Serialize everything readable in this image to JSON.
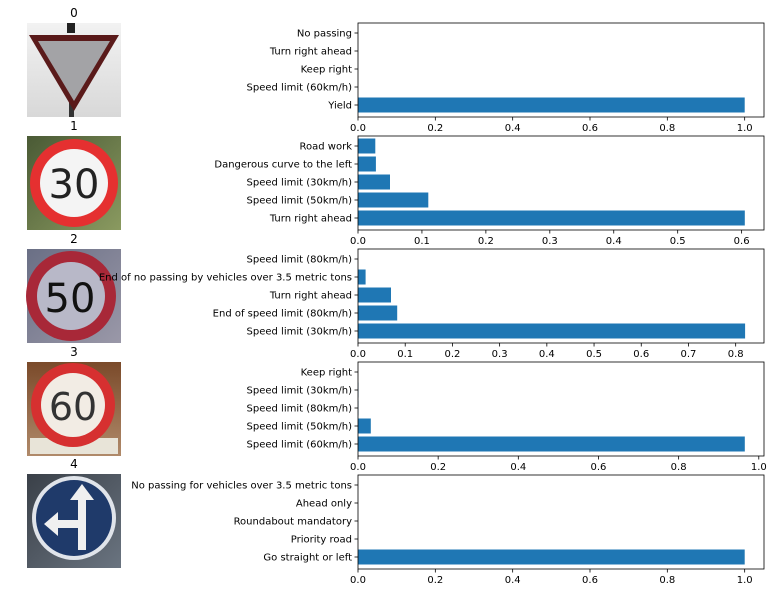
{
  "chart_data": [
    {
      "type": "bar",
      "orientation": "horizontal",
      "image_title": "0",
      "sign_image": "yield-sign",
      "categories": [
        "Yield",
        "Speed limit (60km/h)",
        "Keep right",
        "Turn right ahead",
        "No passing"
      ],
      "values": [
        1.0,
        0.0,
        0.0,
        0.0,
        0.0
      ],
      "xlim": [
        0,
        1.05
      ],
      "xticks": [
        "0.0",
        "0.2",
        "0.4",
        "0.6",
        "0.8",
        "1.0"
      ],
      "xtick_values": [
        0,
        0.2,
        0.4,
        0.6,
        0.8,
        1.0
      ],
      "bar_color": "#1f77b4"
    },
    {
      "type": "bar",
      "orientation": "horizontal",
      "image_title": "1",
      "sign_image": "speed-limit-30-sign",
      "categories": [
        "Turn right ahead",
        "Speed limit (50km/h)",
        "Speed limit (30km/h)",
        "Dangerous curve to the left",
        "Road work"
      ],
      "values": [
        0.605,
        0.11,
        0.05,
        0.028,
        0.027
      ],
      "xlim": [
        0,
        0.635
      ],
      "xticks": [
        "0.0",
        "0.1",
        "0.2",
        "0.3",
        "0.4",
        "0.5",
        "0.6"
      ],
      "xtick_values": [
        0,
        0.1,
        0.2,
        0.3,
        0.4,
        0.5,
        0.6
      ],
      "bar_color": "#1f77b4"
    },
    {
      "type": "bar",
      "orientation": "horizontal",
      "image_title": "2",
      "sign_image": "speed-limit-50-sign",
      "categories": [
        "Speed limit (30km/h)",
        "End of speed limit (80km/h)",
        "Turn right ahead",
        "End of no passing by vehicles over 3.5 metric tons",
        "Speed limit (80km/h)"
      ],
      "values": [
        0.82,
        0.083,
        0.07,
        0.016,
        0.0
      ],
      "xlim": [
        0,
        0.86
      ],
      "xticks": [
        "0.0",
        "0.1",
        "0.2",
        "0.3",
        "0.4",
        "0.5",
        "0.6",
        "0.7",
        "0.8"
      ],
      "xtick_values": [
        0,
        0.1,
        0.2,
        0.3,
        0.4,
        0.5,
        0.6,
        0.7,
        0.8
      ],
      "bar_color": "#1f77b4"
    },
    {
      "type": "bar",
      "orientation": "horizontal",
      "image_title": "3",
      "sign_image": "speed-limit-60-sign",
      "categories": [
        "Speed limit (60km/h)",
        "Speed limit (50km/h)",
        "Speed limit (80km/h)",
        "Speed limit (30km/h)",
        "Keep right"
      ],
      "values": [
        0.965,
        0.032,
        0.001,
        0.001,
        0.0
      ],
      "xlim": [
        0,
        1.013
      ],
      "xticks": [
        "0.0",
        "0.2",
        "0.4",
        "0.6",
        "0.8",
        "1.0"
      ],
      "xtick_values": [
        0,
        0.2,
        0.4,
        0.6,
        0.8,
        1.0
      ],
      "bar_color": "#1f77b4"
    },
    {
      "type": "bar",
      "orientation": "horizontal",
      "image_title": "4",
      "sign_image": "go-straight-or-left-sign",
      "categories": [
        "Go straight or left",
        "Priority road",
        "Roundabout mandatory",
        "Ahead only",
        "No passing for vehicles over 3.5 metric tons"
      ],
      "values": [
        1.0,
        0.0,
        0.0,
        0.0,
        0.0
      ],
      "xlim": [
        0,
        1.05
      ],
      "xticks": [
        "0.0",
        "0.2",
        "0.4",
        "0.6",
        "0.8",
        "1.0"
      ],
      "xtick_values": [
        0,
        0.2,
        0.4,
        0.6,
        0.8,
        1.0
      ],
      "bar_color": "#1f77b4"
    }
  ]
}
